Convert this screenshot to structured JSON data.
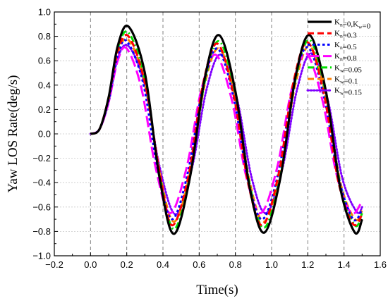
{
  "chart_data": {
    "type": "line",
    "xlabel": "Time(s)",
    "ylabel": "Yaw LOS Rate(deg/s)",
    "xlim": [
      -0.2,
      1.6
    ],
    "ylim": [
      -1.0,
      1.0
    ],
    "x_ticks": [
      -0.2,
      0.0,
      0.2,
      0.4,
      0.6,
      0.8,
      1.0,
      1.2,
      1.4,
      1.6
    ],
    "x_tick_labels": [
      "−0.2",
      "0.0",
      "0.2",
      "0.4",
      "0.6",
      "0.8",
      "1.0",
      "1.2",
      "1.4",
      "1.6"
    ],
    "y_ticks": [
      -1.0,
      -0.8,
      -0.6,
      -0.4,
      -0.2,
      0.0,
      0.2,
      0.4,
      0.6,
      0.8,
      1.0
    ],
    "y_tick_labels": [
      "−1.0",
      "−0.8",
      "−0.6",
      "−0.4",
      "−0.2",
      "0.0",
      "0.2",
      "0.4",
      "0.6",
      "0.8",
      "1.0"
    ],
    "vertical_dashed_lines": [
      0.0,
      0.2,
      0.4,
      0.6,
      0.8,
      1.0,
      1.2,
      1.4
    ],
    "grid": "horizontal dotted",
    "legend_position": "top-right",
    "series": [
      {
        "name": "Kn=0,Kw=0",
        "legend_main": [
          "K",
          "=0,K",
          "=0"
        ],
        "legend_sub": [
          "n",
          "w"
        ],
        "color": "#000000",
        "style": "solid",
        "x": [
          0.0,
          0.05,
          0.1,
          0.15,
          0.21,
          0.3,
          0.38,
          0.46,
          0.55,
          0.63,
          0.71,
          0.8,
          0.88,
          0.96,
          1.05,
          1.13,
          1.21,
          1.3,
          1.38,
          1.46,
          1.5
        ],
        "y": [
          0.0,
          0.04,
          0.3,
          0.72,
          0.88,
          0.5,
          -0.35,
          -0.82,
          -0.35,
          0.45,
          0.81,
          0.35,
          -0.45,
          -0.81,
          -0.35,
          0.45,
          0.81,
          0.35,
          -0.45,
          -0.81,
          -0.7
        ]
      },
      {
        "name": "Kn=0.3",
        "legend_main": [
          "K",
          "=0.3"
        ],
        "legend_sub": [
          "n"
        ],
        "color": "#ff0000",
        "style": "dash",
        "x": [
          0.0,
          0.05,
          0.1,
          0.15,
          0.21,
          0.3,
          0.38,
          0.45,
          0.54,
          0.62,
          0.7,
          0.79,
          0.87,
          0.95,
          1.04,
          1.12,
          1.2,
          1.29,
          1.37,
          1.45,
          1.5
        ],
        "y": [
          0.0,
          0.04,
          0.3,
          0.68,
          0.8,
          0.42,
          -0.3,
          -0.75,
          -0.35,
          0.4,
          0.74,
          0.32,
          -0.4,
          -0.75,
          -0.32,
          0.42,
          0.75,
          0.32,
          -0.4,
          -0.74,
          -0.66
        ]
      },
      {
        "name": "Kn=0.5",
        "legend_main": [
          "K",
          "=0.5"
        ],
        "legend_sub": [
          "n"
        ],
        "color": "#0000ff",
        "style": "shortdash",
        "x": [
          0.0,
          0.05,
          0.1,
          0.15,
          0.2,
          0.29,
          0.37,
          0.45,
          0.54,
          0.62,
          0.7,
          0.79,
          0.87,
          0.95,
          1.04,
          1.12,
          1.2,
          1.29,
          1.37,
          1.45,
          1.5
        ],
        "y": [
          0.0,
          0.04,
          0.28,
          0.64,
          0.76,
          0.42,
          -0.28,
          -0.7,
          -0.3,
          0.38,
          0.7,
          0.3,
          -0.38,
          -0.7,
          -0.3,
          0.4,
          0.71,
          0.3,
          -0.36,
          -0.7,
          -0.62
        ]
      },
      {
        "name": "Kn=0.8",
        "legend_main": [
          "K",
          "=0.8"
        ],
        "legend_sub": [
          "n"
        ],
        "color": "#ff00ff",
        "style": "longdash",
        "x": [
          0.0,
          0.05,
          0.1,
          0.15,
          0.2,
          0.28,
          0.36,
          0.44,
          0.53,
          0.61,
          0.69,
          0.78,
          0.86,
          0.94,
          1.03,
          1.11,
          1.19,
          1.28,
          1.36,
          1.44,
          1.5
        ],
        "y": [
          0.0,
          0.04,
          0.26,
          0.6,
          0.7,
          0.38,
          -0.28,
          -0.65,
          -0.28,
          0.35,
          0.65,
          0.28,
          -0.35,
          -0.65,
          -0.28,
          0.36,
          0.66,
          0.28,
          -0.34,
          -0.65,
          -0.55
        ]
      },
      {
        "name": "Kw=0.05",
        "legend_main": [
          "K",
          "=0.05"
        ],
        "legend_sub": [
          "w"
        ],
        "color": "#00e000",
        "style": "dashdot",
        "x": [
          0.0,
          0.05,
          0.1,
          0.15,
          0.21,
          0.3,
          0.38,
          0.46,
          0.55,
          0.63,
          0.71,
          0.8,
          0.88,
          0.96,
          1.05,
          1.13,
          1.21,
          1.3,
          1.38,
          1.46,
          1.5
        ],
        "y": [
          0.0,
          0.04,
          0.3,
          0.7,
          0.83,
          0.45,
          -0.32,
          -0.78,
          -0.34,
          0.42,
          0.76,
          0.33,
          -0.42,
          -0.77,
          -0.33,
          0.43,
          0.77,
          0.33,
          -0.42,
          -0.75,
          -0.65
        ]
      },
      {
        "name": "Kw=0.1",
        "legend_main": [
          "K",
          "=0.1"
        ],
        "legend_sub": [
          "w"
        ],
        "color": "#ff8000",
        "style": "dash",
        "x": [
          0.0,
          0.05,
          0.1,
          0.15,
          0.21,
          0.3,
          0.38,
          0.46,
          0.55,
          0.63,
          0.71,
          0.8,
          0.88,
          0.96,
          1.05,
          1.13,
          1.21,
          1.3,
          1.38,
          1.46,
          1.5
        ],
        "y": [
          0.0,
          0.04,
          0.28,
          0.66,
          0.77,
          0.42,
          -0.3,
          -0.72,
          -0.32,
          0.4,
          0.7,
          0.3,
          -0.4,
          -0.72,
          -0.3,
          0.4,
          0.72,
          0.3,
          -0.4,
          -0.7,
          -0.63
        ]
      },
      {
        "name": "Kw=0.15",
        "legend_main": [
          "K",
          "=0.15"
        ],
        "legend_sub": [
          "w"
        ],
        "color": "#8000ff",
        "style": "dot",
        "x": [
          0.0,
          0.05,
          0.1,
          0.15,
          0.21,
          0.3,
          0.38,
          0.47,
          0.56,
          0.64,
          0.72,
          0.81,
          0.89,
          0.97,
          1.06,
          1.14,
          1.22,
          1.31,
          1.39,
          1.47,
          1.5
        ],
        "y": [
          0.0,
          0.04,
          0.26,
          0.62,
          0.72,
          0.4,
          -0.26,
          -0.66,
          -0.28,
          0.36,
          0.65,
          0.28,
          -0.36,
          -0.65,
          -0.28,
          0.36,
          0.66,
          0.28,
          -0.36,
          -0.64,
          -0.6
        ]
      }
    ]
  }
}
